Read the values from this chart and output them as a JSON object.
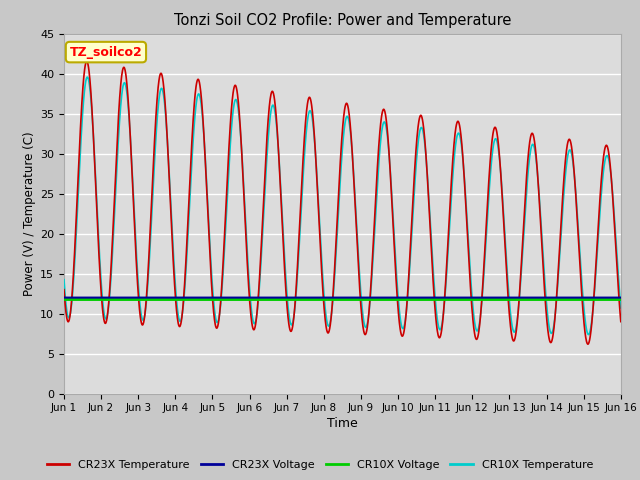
{
  "title": "Tonzi Soil CO2 Profile: Power and Temperature",
  "xlabel": "Time",
  "ylabel": "Power (V) / Temperature (C)",
  "ylim": [
    0,
    45
  ],
  "yticks": [
    0,
    5,
    10,
    15,
    20,
    25,
    30,
    35,
    40,
    45
  ],
  "xlim": [
    0,
    15
  ],
  "xtick_labels": [
    "Jun 1",
    "Jun 2",
    "Jun 3",
    "Jun 4",
    "Jun 5",
    "Jun 6",
    "Jun 7",
    "Jun 8",
    "Jun 9",
    "Jun 10",
    "Jun 11",
    "Jun 12",
    "Jun 13",
    "Jun 14",
    "Jun 15",
    "Jun 16"
  ],
  "annotation_text": "TZ_soilco2",
  "cr23x_temp_color": "#cc0000",
  "cr23x_volt_color": "#000099",
  "cr10x_volt_color": "#00cc00",
  "cr10x_temp_color": "#00cccc",
  "legend_labels": [
    "CR23X Temperature",
    "CR23X Voltage",
    "CR10X Voltage",
    "CR10X Temperature"
  ],
  "legend_colors": [
    "#cc0000",
    "#000099",
    "#00cc00",
    "#00cccc"
  ],
  "fig_width": 6.4,
  "fig_height": 4.8,
  "dpi": 100
}
